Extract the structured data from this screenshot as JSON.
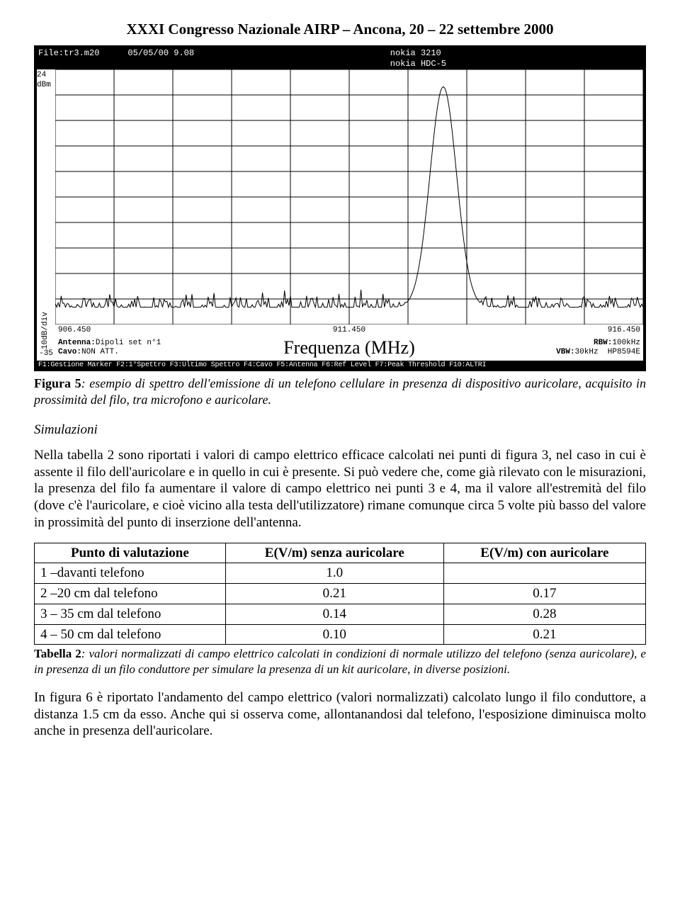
{
  "header": "XXXI Congresso Nazionale AIRP – Ancona, 20 – 22 settembre 2000",
  "scope": {
    "topbar": {
      "file": "File:tr3.m20",
      "datetime": "05/05/00 9.08",
      "device1": "nokia 3210",
      "device2": "nokia HDC-5"
    },
    "y_top_label": "24 dBm",
    "y_scale_label": "10dB/div",
    "y_bottom_label": "-35",
    "x_start": "906.450",
    "x_mid": "911.450",
    "x_end": "916.450",
    "xaxis_title": "Frequenza (MHz)",
    "antenna_label": "Antenna:",
    "antenna_value": "Dipoli set n°1",
    "cavo_label": "Cavo:",
    "cavo_value": "NON ATT.",
    "rbw_label": "RBW:",
    "rbw_value": "100kHz",
    "vbw_label": "VBW:",
    "vbw_value": "30kHz",
    "instr": "HP8594E",
    "fn_bar": "F1:Gestione Marker F2:1°Spettro F3:Ultimo Spettro F4:Cavo F5:Antenna F6:Ref Level F7:Peak Threshold F10:ALTRI",
    "chart": {
      "type": "line",
      "background_color": "#ffffff",
      "grid_color": "#000000",
      "line_color": "#000000",
      "line_width": 1,
      "xlim": [
        906.45,
        916.45
      ],
      "ylim": [
        -35,
        24
      ],
      "x_divs": 10,
      "y_divs": 10,
      "noise_floor_db": -31,
      "peak": {
        "center_mhz": 913.05,
        "top_db": 20,
        "half_width_mhz": 0.35
      }
    }
  },
  "fig5_b": "Figura 5",
  "fig5_text": ": esempio di spettro dell'emissione di un telefono cellulare in presenza di dispositivo auricolare, acquisito in prossimità del filo, tra microfono e auricolare.",
  "section_title": "Simulazioni",
  "para1": "Nella tabella 2 sono riportati i valori di campo elettrico efficace calcolati nei punti di figura 3, nel caso in cui è assente il filo dell'auricolare e in quello in cui è presente. Si può vedere che, come già rilevato con le misurazioni, la presenza del filo fa aumentare il valore di campo elettrico nei punti 3 e 4, ma il valore all'estremità del filo (dove c'è l'auricolare, e cioè vicino alla testa dell'utilizzatore) rimane comunque circa 5 volte più basso del valore in prossimità del punto di inserzione dell'antenna.",
  "table": {
    "columns": [
      "Punto di valutazione",
      "E(V/m) senza auricolare",
      "E(V/m) con auricolare"
    ],
    "rows": [
      [
        "1 –davanti telefono",
        "1.0",
        ""
      ],
      [
        "2 –20 cm dal telefono",
        "0.21",
        "0.17"
      ],
      [
        "3 – 35 cm dal telefono",
        "0.14",
        "0.28"
      ],
      [
        "4 – 50 cm dal telefono",
        "0.10",
        "0.21"
      ]
    ]
  },
  "tbl2_b": "Tabella 2",
  "tbl2_text": ": valori normalizzati di campo elettrico calcolati in condizioni di normale utilizzo del telefono (senza auricolare), e in presenza di un filo conduttore per simulare la presenza di un kit auricolare, in diverse posizioni.",
  "para2": "In figura 6 è riportato l'andamento del campo elettrico (valori normalizzati) calcolato lungo il filo conduttore, a distanza 1.5 cm da esso. Anche qui si osserva come, allontanandosi dal telefono, l'esposizione diminuisca molto anche in presenza dell'auricolare."
}
